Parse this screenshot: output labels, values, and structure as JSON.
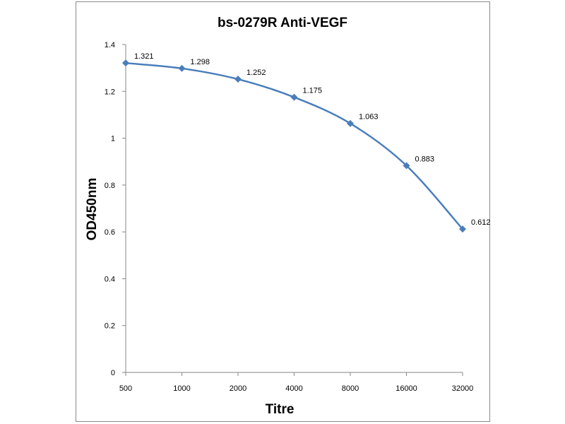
{
  "chart_data": {
    "type": "line",
    "title": "bs-0279R Anti-VEGF",
    "xlabel": "Titre",
    "ylabel": "OD450nm",
    "categories": [
      "500",
      "1000",
      "2000",
      "4000",
      "8000",
      "16000",
      "32000"
    ],
    "series": [
      {
        "name": "OD450nm",
        "values": [
          1.321,
          1.298,
          1.252,
          1.175,
          1.063,
          0.883,
          0.612
        ],
        "color": "#4a7ebb"
      }
    ],
    "data_labels": [
      "1.321",
      "1.298",
      "1.252",
      "1.175",
      "1.063",
      "0.883",
      "0.612"
    ],
    "ylim": [
      0,
      1.4
    ],
    "yticks": [
      "0",
      "0.2",
      "0.4",
      "0.6",
      "0.8",
      "1",
      "1.2",
      "1.4"
    ],
    "grid": false
  }
}
